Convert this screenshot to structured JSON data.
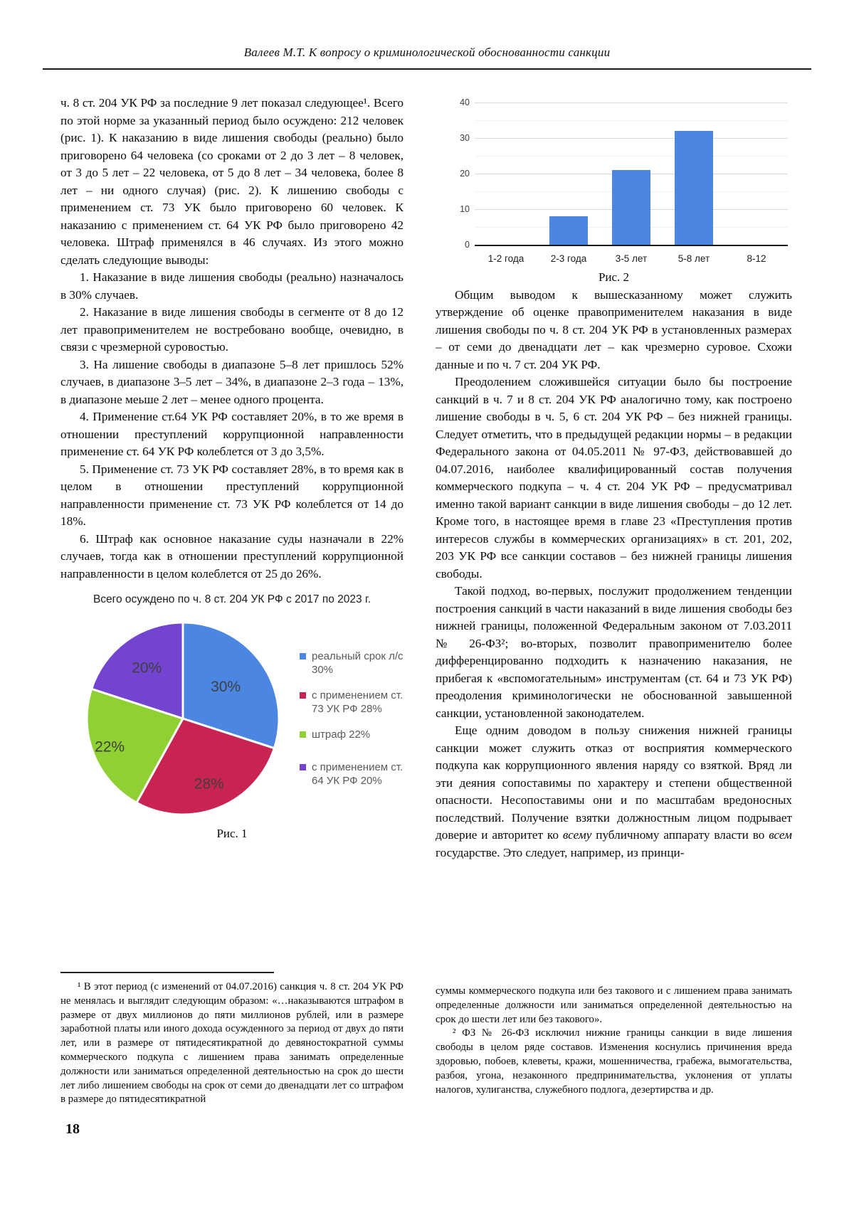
{
  "header": {
    "title": "Валеев М.Т. К вопросу о криминологической обоснованности санкции"
  },
  "page_number": "18",
  "figures": {
    "fig1_caption": "Рис. 1",
    "fig2_caption": "Рис. 2"
  },
  "left_column": {
    "paragraphs": [
      "ч. 8 ст. 204 УК РФ за последние 9 лет показал следующее¹. Всего по этой норме за указанный период было осуждено: 212 человек (рис. 1). К наказанию в виде лишения свободы (реально) было приговорено 64 человека (со сроками от 2 до 3 лет – 8 человек, от 3 до 5 лет – 22 человека, от 5 до 8 лет – 34 человека, более 8 лет – ни одного случая) (рис. 2). К лишению свободы с применением ст. 73 УК было приговорено 60 человек. К наказанию с применением ст. 64 УК РФ было приговорено 42 человека. Штраф применялся в 46 случаях. Из этого можно сделать следующие выводы:",
      "1. Наказание в виде лишения свободы (реально) назначалось в 30% случаев.",
      "2. Наказание в виде лишения свободы в сегменте от 8 до 12 лет правоприменителем не востребовано вообще, очевидно, в связи с чрезмерной суровостью.",
      "3. На лишение свободы в диапазоне 5–8 лет пришлось 52% случаев, в диапазоне 3–5 лет – 34%, в диапазоне 2–3 года – 13%, в диапазоне меьше 2 лет – менее одного процента.",
      "4. Применение ст.64 УК РФ составляет 20%, в то же время в отношении преступлений коррупционной направленности применение ст. 64 УК РФ колеблется от 3 до 3,5%.",
      "5. Применение ст. 73 УК РФ составляет 28%, в то время как в целом в отношении преступлений коррупционной направленности применение ст. 73 УК РФ колеблется от 14 до 18%.",
      "6. Штраф как основное наказание суды назначали в 22% случаев, тогда как в отношении преступлений коррупционной направленности в целом колеблется от 25 до 26%."
    ]
  },
  "right_column": {
    "paragraphs": [
      "Общим выводом к вышесказанному может служить утверждение об оценке правоприменителем наказания в виде лишения свободы по ч. 8 ст. 204 УК РФ в установленных размерах – от семи до двенадцати лет – как чрезмерно суровое. Схожи данные и по ч. 7 ст. 204 УК РФ.",
      "Преодолением сложившейся ситуации было бы построение санкций в ч. 7 и 8 ст. 204 УК РФ аналогично тому, как построено лишение свободы в ч. 5, 6 ст. 204 УК РФ – без нижней границы. Следует отметить, что в предыдущей редакции нормы – в редакции Федерального закона от 04.05.2011 № 97-ФЗ, действовавшей до 04.07.2016, наиболее квалифицированный состав получения коммерческого подкупа – ч. 4 ст. 204 УК РФ – предусматривал именно такой вариант санкции в виде лишения свободы – до 12 лет. Кроме того, в настоящее время в главе 23 «Преступления против интересов службы в коммерческих организациях» в ст. 201, 202, 203 УК РФ все санкции составов – без нижней границы лишения свободы.",
      "Такой подход, во-первых, послужит продолжением тенденции построения санкций в части наказаний в виде лишения свободы без нижней границы, положенной Федеральным законом от 7.03.2011 № 26-ФЗ²; во-вторых, позволит правоприменителю более дифференцированно подходить к назначению наказания, не прибегая к «вспомогательным» инструментам (ст. 64 и 73 УК РФ) преодоления криминологически не обоснованной завышенной санкции, установленной законодателем."
    ],
    "final_paragraph": [
      "Еще одним доводом в пользу снижения нижней границы санкции может служить отказ от восприятия коммерческого подкупа как коррупционного явления наряду со взяткой. Вряд ли эти деяния сопоставимы по характеру и степени общественной опасности. Несопоставимы они и по масштабам вредоносных последствий. Получение взятки должностным лицом подрывает доверие и авторитет ко ",
      "всему",
      " публичному аппарату власти во ",
      "всем",
      " государстве. Это следует, например, из принци-"
    ]
  },
  "footnotes": {
    "note1_part1": "¹ В этот период (с изменений от 04.07.2016) санкция ч. 8 ст. 204 УК РФ не менялась и выглядит следующим образом: «…наказываются штрафом в размере от двух миллионов до пяти миллионов рублей, или в размере заработной платы или иного дохода осужденного за период от двух до пяти лет, или в размере от пятидесятикратной до девяностократной суммы коммерческого подкупа с лишением права занимать определенные должности или заниматься определенной деятельностью на срок до шести лет либо лишением свободы на срок от семи до двенадцати лет со штрафом в размере до пятидесятикратной",
    "note1_part2": "суммы коммерческого подкупа или без такового и с лишением права занимать определенные должности или заниматься определенной деятельностью на срок до шести лет или без такового».",
    "note2": "² ФЗ № 26-ФЗ исключил нижние границы санкции в виде лишения свободы в целом ряде составов. Изменения коснулись причинения вреда здоровью, побоев, клеветы, кражи, мошенничества, грабежа, вымогательства, разбоя, угона, незаконного предпринимательства, уклонения от уплаты налогов, хулиганства, служебного подлога, дезертирства и др."
  },
  "chart_data": [
    {
      "type": "bar",
      "figure": "Рис. 2",
      "title": "",
      "categories": [
        "1-2 года",
        "2-3 года",
        "3-5 лет",
        "5-8 лет",
        "8-12"
      ],
      "values": [
        0,
        8,
        21,
        32,
        0
      ],
      "xlabel": "",
      "ylabel": "",
      "ylim": [
        0,
        40
      ],
      "yticks": [
        0,
        10,
        20,
        30,
        40
      ],
      "bar_color": "#4a86e2",
      "grid": true,
      "legend": false
    },
    {
      "type": "pie",
      "figure": "Рис. 1",
      "title": "Всего осуждено по ч. 8 ст. 204 УК РФ с 2017 по 2023 г.",
      "labels": [
        "реальный срок л/с 30%",
        "с применением ст. 73 УК РФ 28%",
        "штраф 22%",
        "с применением ст. 64 УК РФ 20%"
      ],
      "values": [
        30,
        28,
        22,
        20
      ],
      "slice_labels": [
        "30%",
        "28%",
        "22%",
        "20%"
      ],
      "colors": [
        "#4a86e2",
        "#c92351",
        "#8fd032",
        "#7244d0"
      ],
      "label_radius": [
        0.55,
        0.74,
        0.82,
        0.64
      ],
      "start_angle": "top",
      "direction": "clockwise",
      "legend_position": "right"
    }
  ]
}
